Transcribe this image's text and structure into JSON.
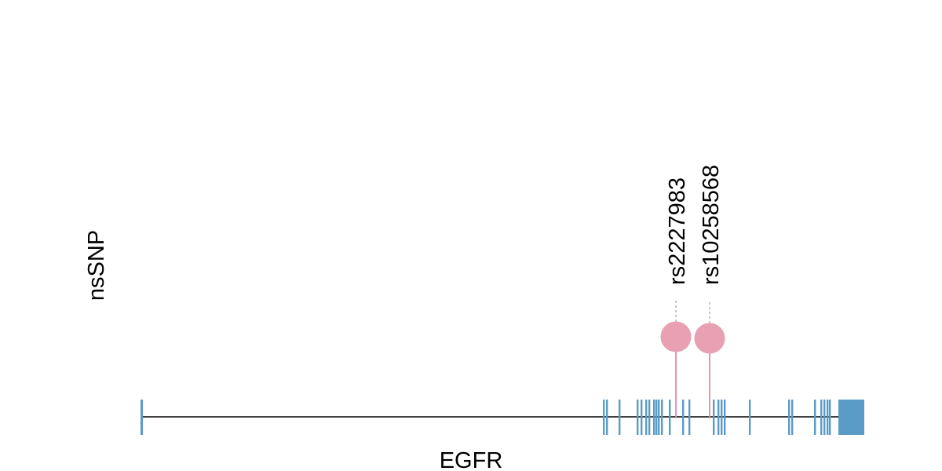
{
  "track_label": "nsSNP",
  "gene_name": "EGFR",
  "colors": {
    "exon": "#5b9bc7",
    "snp": "#e9a0b2",
    "snp_stem": "#e08aa3",
    "backbone": "#000000",
    "connector": "#bbbbbb"
  },
  "snps": [
    {
      "id": "rs2227983"
    },
    {
      "id": "rs10258568"
    }
  ]
}
